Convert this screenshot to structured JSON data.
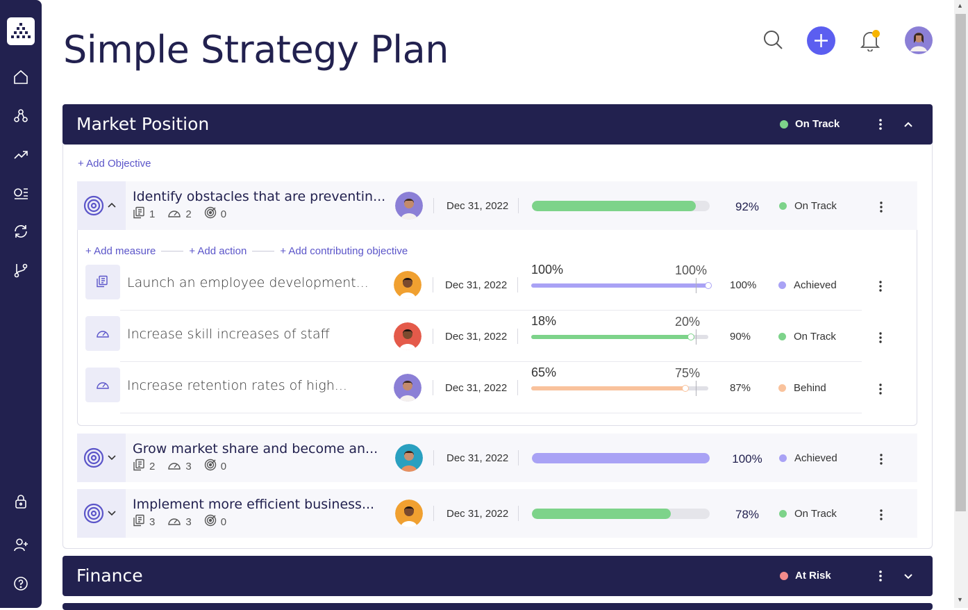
{
  "page": {
    "title": "Simple Strategy Plan"
  },
  "colors": {
    "navy": "#22214f",
    "accent": "#5b5ef0",
    "on_track": "#7dd38a",
    "achieved": "#a9a2f5",
    "behind": "#f9c29c",
    "at_risk": "#f38b8b",
    "link": "#5b55c9"
  },
  "sidebar": {
    "icons": [
      "logo-icon",
      "home-icon",
      "hierarchy-icon",
      "trending-icon",
      "list-icon",
      "refresh-icon",
      "branch-icon",
      "lock-icon",
      "add-user-icon",
      "help-icon"
    ]
  },
  "header": {
    "icons": [
      "search-icon",
      "add-icon",
      "bell-icon",
      "avatar"
    ]
  },
  "sections": [
    {
      "title": "Market Position",
      "status": "On Track",
      "status_color": "#7dd38a",
      "expanded": true
    },
    {
      "title": "Finance",
      "status": "At Risk",
      "status_color": "#f38b8b",
      "expanded": false
    }
  ],
  "add_objective_label": "+ Add Objective",
  "objectives": [
    {
      "title": "Identify obstacles that are preventin...",
      "measures": "1",
      "actions": "2",
      "objectives": "0",
      "date": "Dec 31, 2022",
      "progress": 0.92,
      "pct": "92%",
      "status": "On Track",
      "color": "#7dd38a"
    },
    {
      "title": "Grow market share and become an...",
      "measures": "2",
      "actions": "3",
      "objectives": "0",
      "date": "Dec 31, 2022",
      "progress": 1.0,
      "pct": "100%",
      "status": "Achieved",
      "color": "#a9a2f5"
    },
    {
      "title": "Implement more efficient business...",
      "measures": "3",
      "actions": "3",
      "objectives": "0",
      "date": "Dec 31, 2022",
      "progress": 0.78,
      "pct": "78%",
      "status": "On Track",
      "color": "#7dd38a"
    }
  ],
  "links": {
    "add_measure": "+ Add measure",
    "add_action": "+ Add action",
    "add_contrib": "+ Add contributing objective"
  },
  "sub_items": [
    {
      "title": "Launch an employee development...",
      "date": "Dec 31, 2022",
      "current": "100%",
      "target": "100%",
      "fill": 1.0,
      "target_pos": 0.93,
      "pct": "100%",
      "status": "Achieved",
      "color": "#a9a2f5",
      "icon": "measure-doc-icon"
    },
    {
      "title": "Increase skill increases of staff",
      "date": "Dec 31, 2022",
      "current": "18%",
      "target": "20%",
      "fill": 0.9,
      "target_pos": 0.93,
      "pct": "90%",
      "status": "On Track",
      "color": "#7dd38a",
      "icon": "gauge-icon"
    },
    {
      "title": "Increase retention rates of high...",
      "date": "Dec 31, 2022",
      "current": "65%",
      "target": "75%",
      "fill": 0.87,
      "target_pos": 0.93,
      "pct": "87%",
      "status": "Behind",
      "color": "#f9c29c",
      "icon": "gauge-icon"
    }
  ]
}
